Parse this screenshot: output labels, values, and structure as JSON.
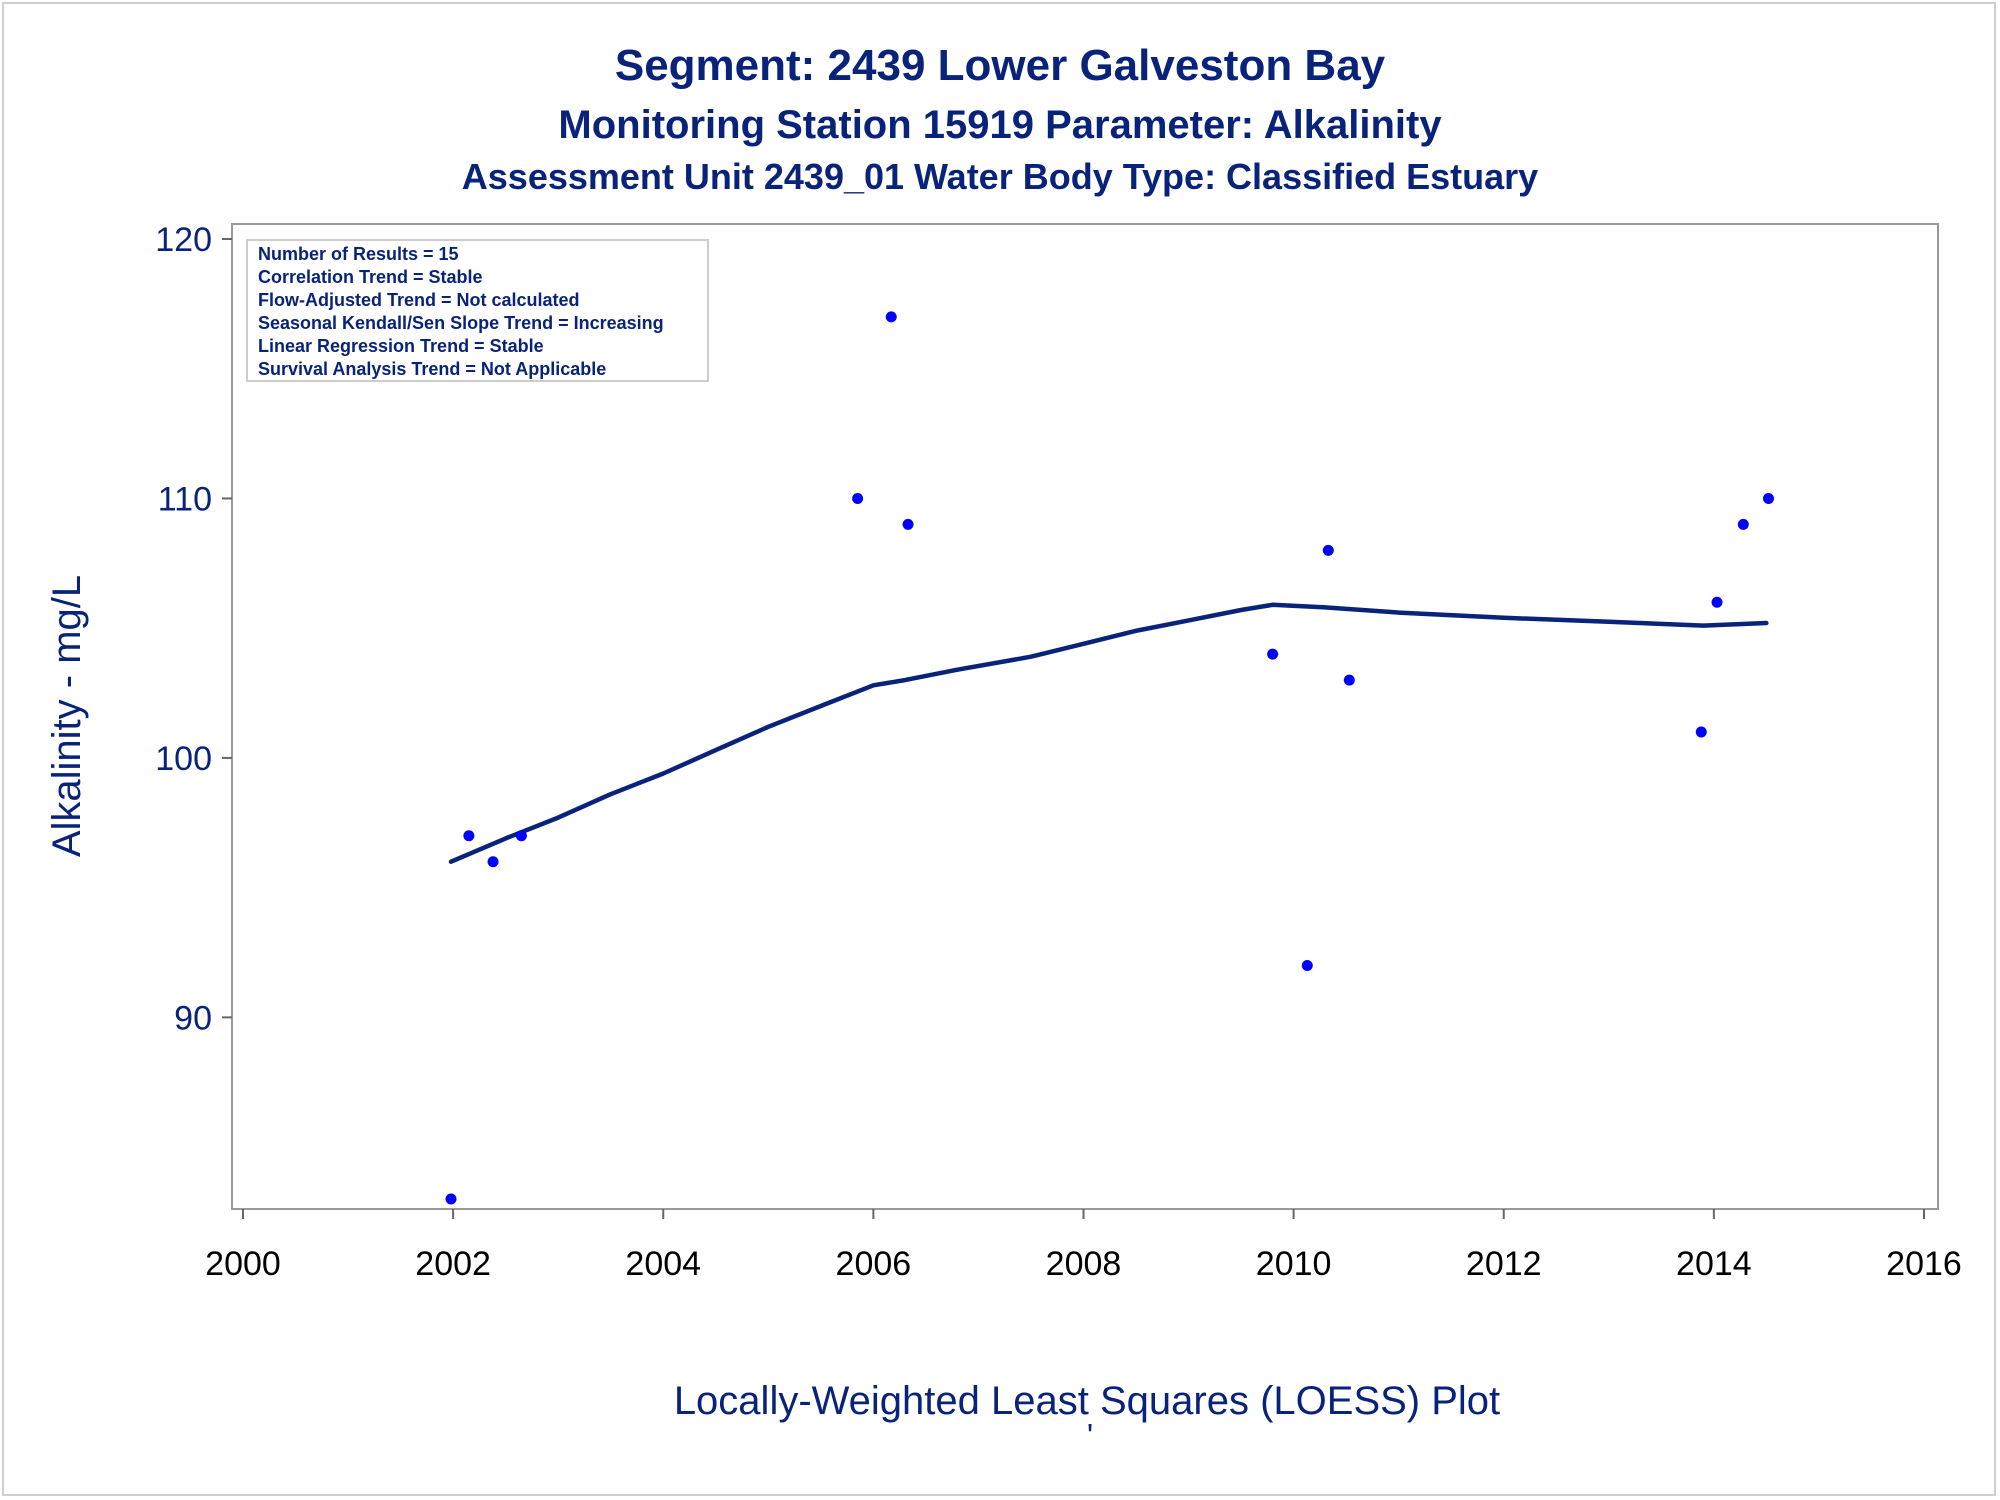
{
  "chart_data": {
    "type": "scatter",
    "title": "Segment: 2439  Lower Galveston Bay",
    "subtitle": "Monitoring Station 15919 Parameter: Alkalinity",
    "subtitle2": "Assessment Unit 2439_01   Water Body Type: Classified Estuary",
    "xlabel": "Locally-Weighted Least Squares (LOESS) Plot",
    "ylabel": "Alkalinity - mg/L",
    "footnote_mark": "'",
    "xlim": [
      2000,
      2016
    ],
    "ylim": [
      83,
      120
    ],
    "x_ticks": [
      2000,
      2002,
      2004,
      2006,
      2008,
      2010,
      2012,
      2014,
      2016
    ],
    "y_ticks": [
      90,
      100,
      110,
      120
    ],
    "grid": false,
    "series": [
      {
        "type": "scatter",
        "color": "#0000ff",
        "x": [
          2001.98,
          2002.15,
          2002.38,
          2002.65,
          2005.85,
          2006.17,
          2006.33,
          2009.8,
          2010.13,
          2010.33,
          2010.53,
          2013.88,
          2014.03,
          2014.28,
          2014.52
        ],
        "y": [
          83,
          97,
          96,
          97,
          110,
          117,
          109,
          104,
          92,
          108,
          103,
          101,
          106,
          109,
          110
        ]
      },
      {
        "type": "line",
        "color": "#0a237a",
        "x": [
          2001.98,
          2002.5,
          2003,
          2003.5,
          2004,
          2004.5,
          2005,
          2005.5,
          2006,
          2006.3,
          2006.8,
          2007.5,
          2008,
          2008.5,
          2009,
          2009.5,
          2009.8,
          2010.3,
          2011,
          2012,
          2013,
          2013.9,
          2014.5
        ],
        "y": [
          96,
          96.9,
          97.7,
          98.6,
          99.4,
          100.3,
          101.2,
          102.0,
          102.8,
          103.0,
          103.4,
          103.9,
          104.4,
          104.9,
          105.3,
          105.7,
          105.9,
          105.8,
          105.6,
          105.4,
          105.25,
          105.1,
          105.2
        ]
      }
    ],
    "stats_box": [
      "Number of Results = 15",
      "Correlation Trend = Stable",
      "Flow-Adjusted Trend = Not calculated",
      "Seasonal Kendall/Sen Slope Trend = Increasing",
      "Linear Regression Trend = Stable",
      "Survival Analysis Trend = Not Applicable"
    ],
    "stats_box_position": "top-left"
  }
}
